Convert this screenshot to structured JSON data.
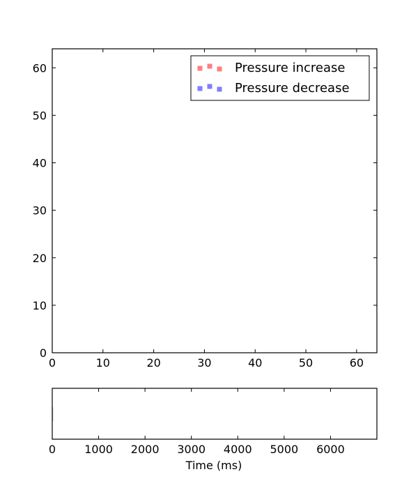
{
  "chart_data": [
    {
      "type": "scatter",
      "title": "",
      "xlabel": "",
      "ylabel": "",
      "xlim": [
        0,
        64
      ],
      "ylim": [
        0,
        64
      ],
      "xticks": [
        0,
        10,
        20,
        30,
        40,
        50,
        60
      ],
      "yticks": [
        0,
        10,
        20,
        30,
        40,
        50,
        60
      ],
      "grid": false,
      "legend_position": "top-right",
      "series": [
        {
          "name": "Pressure increase",
          "color": "#ff7f7f",
          "points": []
        },
        {
          "name": "Pressure decrease",
          "color": "#7f7fff",
          "points": []
        }
      ]
    },
    {
      "type": "line",
      "title": "",
      "xlabel": "Time (ms)",
      "ylabel": "",
      "xlim": [
        0,
        7000
      ],
      "xticks": [
        0,
        1000,
        2000,
        3000,
        4000,
        5000,
        6000
      ],
      "grid": false,
      "series": []
    }
  ]
}
